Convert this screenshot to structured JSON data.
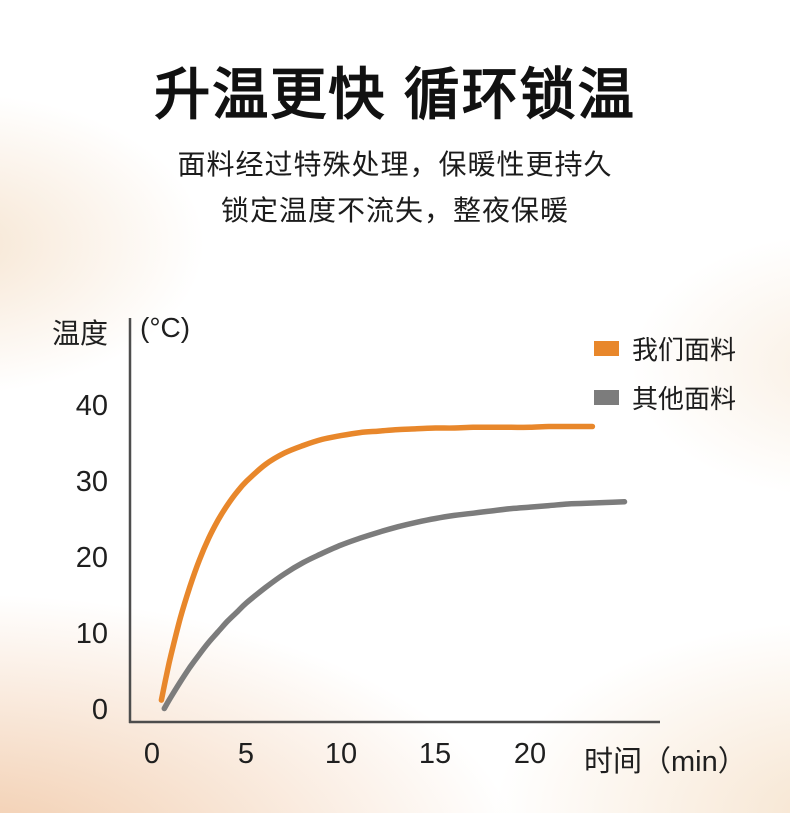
{
  "page": {
    "title": "升温更快 循环锁温",
    "subtitle_line1": "面料经过特殊处理，保暖性更持久",
    "subtitle_line2": "锁定温度不流失，整夜保暖"
  },
  "colors": {
    "accent_orange": "#E8872B",
    "line_gray": "#7C7C7C",
    "background_tint": "#EDC49A"
  },
  "chart_data": {
    "type": "line",
    "title": "",
    "xlabel": "时间（min）",
    "ylabel": "温度",
    "ylabel_unit": "(°C)",
    "xlim": [
      0,
      25
    ],
    "ylim": [
      0,
      45
    ],
    "x_ticks": [
      0,
      5,
      10,
      15,
      20
    ],
    "y_ticks": [
      40,
      30,
      20,
      10,
      0
    ],
    "grid": false,
    "legend_position": "top-right",
    "series": [
      {
        "name": "我们面料",
        "color": "#E8872B",
        "points": [
          [
            0.5,
            1.3
          ],
          [
            0.75,
            4.4
          ],
          [
            1,
            7.2
          ],
          [
            1.5,
            12.1
          ],
          [
            2,
            16.2
          ],
          [
            2.5,
            19.7
          ],
          [
            3,
            22.6
          ],
          [
            3.5,
            25.0
          ],
          [
            4,
            27.0
          ],
          [
            4.5,
            28.7
          ],
          [
            5,
            30.1
          ],
          [
            6,
            32.3
          ],
          [
            7,
            33.8
          ],
          [
            8,
            34.8
          ],
          [
            9,
            35.6
          ],
          [
            10,
            36.1
          ],
          [
            11,
            36.5
          ],
          [
            12,
            36.7
          ],
          [
            13,
            36.9
          ],
          [
            14,
            37.0
          ],
          [
            15,
            37.1
          ],
          [
            16,
            37.1
          ],
          [
            17,
            37.2
          ],
          [
            18,
            37.2
          ],
          [
            19,
            37.2
          ],
          [
            20,
            37.2
          ],
          [
            21,
            37.3
          ],
          [
            22,
            37.3
          ],
          [
            23.3,
            37.3
          ]
        ]
      },
      {
        "name": "其他面料",
        "color": "#7C7C7C",
        "points": [
          [
            0.65,
            0.2
          ],
          [
            1,
            1.7
          ],
          [
            1.5,
            3.7
          ],
          [
            2,
            5.6
          ],
          [
            2.5,
            7.3
          ],
          [
            3,
            8.9
          ],
          [
            3.5,
            10.3
          ],
          [
            4,
            11.7
          ],
          [
            4.5,
            12.9
          ],
          [
            5,
            14.1
          ],
          [
            6,
            16.1
          ],
          [
            7,
            17.9
          ],
          [
            8,
            19.4
          ],
          [
            9,
            20.6
          ],
          [
            10,
            21.7
          ],
          [
            11,
            22.6
          ],
          [
            12,
            23.4
          ],
          [
            13,
            24.1
          ],
          [
            14,
            24.7
          ],
          [
            15,
            25.2
          ],
          [
            16,
            25.6
          ],
          [
            17,
            25.9
          ],
          [
            18,
            26.2
          ],
          [
            19,
            26.5
          ],
          [
            20,
            26.7
          ],
          [
            21,
            26.9
          ],
          [
            22,
            27.1
          ],
          [
            23,
            27.2
          ],
          [
            24,
            27.3
          ],
          [
            25,
            27.4
          ]
        ]
      }
    ]
  }
}
